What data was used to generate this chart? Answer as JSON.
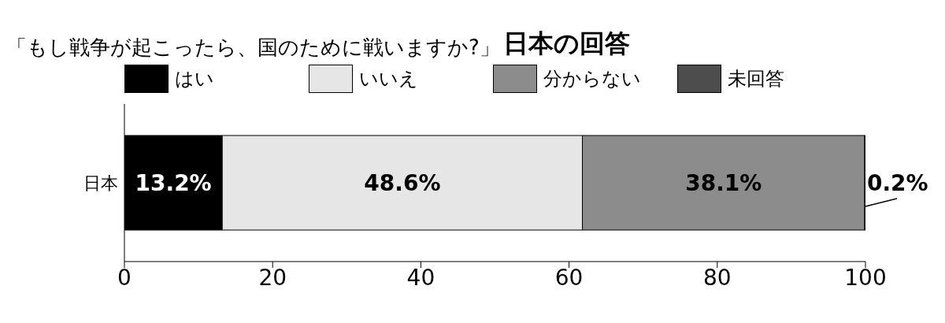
{
  "chart_data": {
    "type": "bar",
    "orientation": "horizontal",
    "stacked": true,
    "title": "「もし戦争が起こったら、国のために戦いますか?」",
    "subtitle": "日本の回答",
    "categories": [
      "日本"
    ],
    "series": [
      {
        "name": "はい",
        "color": "#000000",
        "values": [
          13.2
        ],
        "value_labels": [
          "13.2%"
        ]
      },
      {
        "name": "いいえ",
        "color": "#e6e6e6",
        "values": [
          48.6
        ],
        "value_labels": [
          "48.6%"
        ]
      },
      {
        "name": "分からない",
        "color": "#8c8c8c",
        "values": [
          38.1
        ],
        "value_labels": [
          "38.1%"
        ]
      },
      {
        "name": "未回答",
        "color": "#4d4d4d",
        "values": [
          0.2
        ],
        "value_labels": [
          "0.2%"
        ]
      }
    ],
    "xlim": [
      0,
      100
    ],
    "xticks": [
      0,
      20,
      40,
      60,
      80,
      100
    ],
    "legend": "top",
    "grid": false
  }
}
